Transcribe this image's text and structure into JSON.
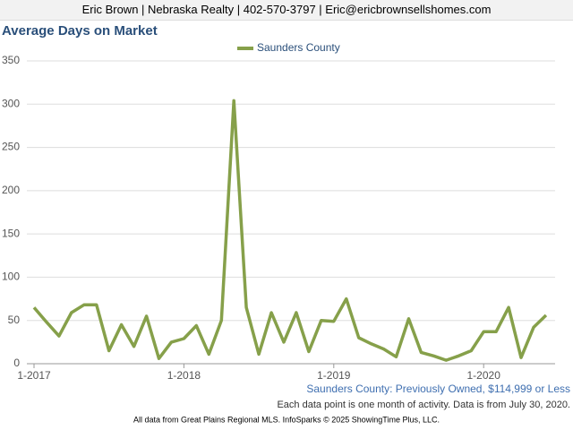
{
  "page": {
    "header": "Eric Brown | Nebraska Realty | 402-570-3797 | Eric@ericbrownsellshomes.com",
    "filter": "Saunders County: Previously Owned, $114,999 or Less",
    "note": "Each data point is one month of activity. Data is from July 30, 2020.",
    "credit": "All data from Great Plains Regional MLS. InfoSparks © 2025 ShowingTime Plus, LLC."
  },
  "chart_data": {
    "type": "line",
    "title": "Average Days on Market",
    "categories": [
      "1-2017",
      null,
      null,
      null,
      null,
      null,
      null,
      null,
      null,
      null,
      null,
      null,
      "1-2018",
      null,
      null,
      null,
      null,
      null,
      null,
      null,
      null,
      null,
      null,
      null,
      "1-2019",
      null,
      null,
      null,
      null,
      null,
      null,
      null,
      null,
      null,
      null,
      null,
      "1-2020",
      null,
      null,
      null,
      null,
      null
    ],
    "series": [
      {
        "name": "Saunders County",
        "color": "#86a04a",
        "values": [
          65,
          48,
          32,
          59,
          68,
          68,
          15,
          45,
          20,
          55,
          6,
          25,
          29,
          44,
          11,
          50,
          304,
          65,
          11,
          59,
          25,
          59,
          14,
          50,
          49,
          75,
          30,
          23,
          17,
          8,
          52,
          13,
          9,
          4,
          9,
          15,
          37,
          37,
          65,
          7,
          42,
          56
        ]
      }
    ],
    "ylim": [
      0,
      350
    ],
    "yticks": [
      0,
      50,
      100,
      150,
      200,
      250,
      300,
      350
    ],
    "grid": true,
    "legend": "top"
  }
}
